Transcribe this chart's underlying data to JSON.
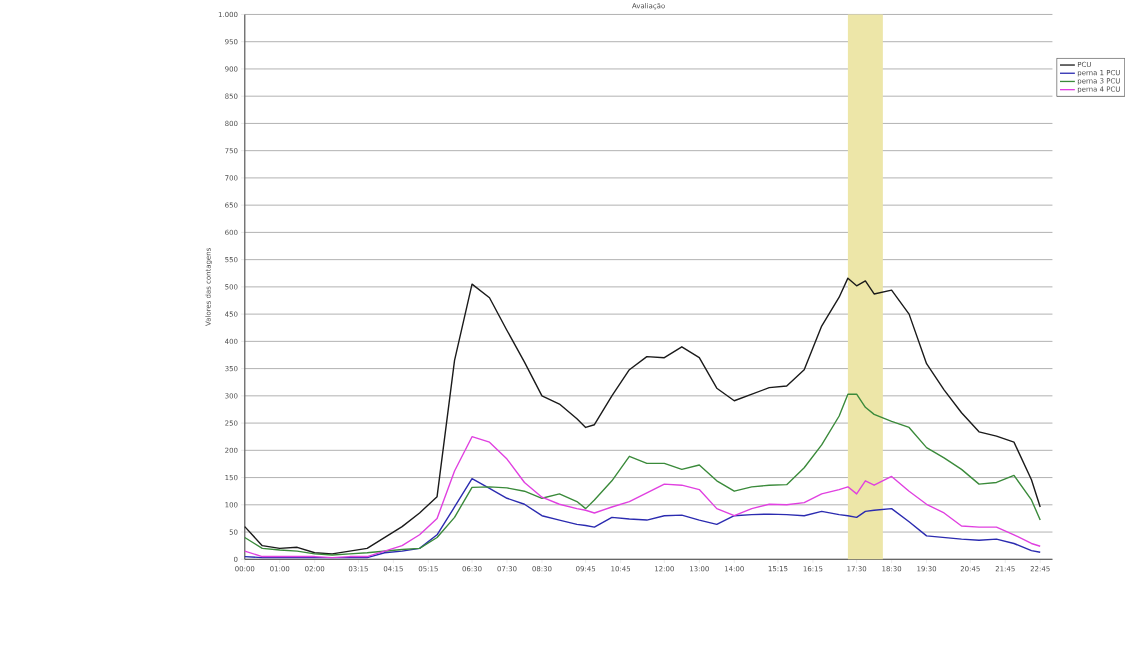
{
  "chart_data": {
    "type": "line",
    "title": "Avaliação",
    "ylabel": "Valores das contagens",
    "x": [
      0,
      0.5,
      1,
      1.5,
      2,
      2.5,
      3,
      3.5,
      4,
      4.5,
      5,
      5.5,
      6,
      6.5,
      7,
      7.5,
      8,
      8.5,
      9,
      9.5,
      9.75,
      10,
      10.5,
      11,
      11.5,
      12,
      12.5,
      13,
      13.5,
      14,
      14.5,
      15,
      15.5,
      16,
      16.5,
      17,
      17.25,
      17.5,
      17.75,
      18,
      18.5,
      19,
      19.5,
      20,
      20.5,
      21,
      21.5,
      22,
      22.5,
      22.75
    ],
    "series": [
      {
        "name": "PCU",
        "color": "#1a1a1a",
        "values": [
          60,
          25,
          20,
          22,
          12,
          10,
          15,
          20,
          40,
          60,
          85,
          115,
          365,
          505,
          480,
          420,
          362,
          300,
          285,
          258,
          242,
          247,
          300,
          348,
          372,
          370,
          390,
          370,
          314,
          291,
          303,
          315,
          318,
          348,
          428,
          481,
          516,
          502,
          511,
          487,
          494,
          450,
          359,
          311,
          269,
          234,
          226,
          215,
          146,
          96
        ]
      },
      {
        "name": "perna 1 PCU",
        "color": "#2b2bb0",
        "values": [
          5,
          3,
          3,
          3,
          3,
          3,
          3,
          3,
          12,
          15,
          20,
          45,
          96,
          148,
          130,
          112,
          101,
          80,
          72,
          64,
          62,
          59,
          77,
          74,
          72,
          80,
          81,
          72,
          64,
          80,
          82,
          83,
          82,
          80,
          88,
          82,
          80,
          77,
          88,
          90,
          93,
          69,
          43,
          40,
          37,
          35,
          37,
          29,
          16,
          13
        ]
      },
      {
        "name": "perna 3 PCU",
        "color": "#3a8a3a",
        "values": [
          40,
          20,
          17,
          15,
          10,
          8,
          10,
          12,
          15,
          18,
          20,
          40,
          77,
          132,
          133,
          131,
          125,
          112,
          120,
          106,
          93,
          109,
          144,
          189,
          176,
          176,
          165,
          173,
          144,
          125,
          133,
          136,
          137,
          168,
          210,
          263,
          303,
          303,
          279,
          266,
          253,
          242,
          205,
          186,
          165,
          138,
          141,
          154,
          109,
          72
        ]
      },
      {
        "name": "perna 4 PCU",
        "color": "#e040e0",
        "values": [
          15,
          5,
          5,
          5,
          5,
          3,
          5,
          5,
          15,
          25,
          45,
          75,
          162,
          225,
          215,
          184,
          141,
          114,
          101,
          93,
          90,
          85,
          96,
          106,
          122,
          138,
          136,
          128,
          93,
          80,
          93,
          101,
          100,
          104,
          120,
          128,
          133,
          120,
          144,
          136,
          152,
          125,
          101,
          85,
          61,
          59,
          59,
          45,
          29,
          24
        ]
      }
    ],
    "xlim": [
      0,
      23.1
    ],
    "xticks": [
      {
        "value": 0,
        "label": "00:00"
      },
      {
        "value": 1,
        "label": "01:00"
      },
      {
        "value": 2,
        "label": "02:00"
      },
      {
        "value": 3.25,
        "label": "03:15"
      },
      {
        "value": 4.25,
        "label": "04:15"
      },
      {
        "value": 5.25,
        "label": "05:15"
      },
      {
        "value": 6.5,
        "label": "06:30"
      },
      {
        "value": 7.5,
        "label": "07:30"
      },
      {
        "value": 8.5,
        "label": "08:30"
      },
      {
        "value": 9.75,
        "label": "09:45"
      },
      {
        "value": 10.75,
        "label": "10:45"
      },
      {
        "value": 12,
        "label": "12:00"
      },
      {
        "value": 13,
        "label": "13:00"
      },
      {
        "value": 14,
        "label": "14:00"
      },
      {
        "value": 15.25,
        "label": "15:15"
      },
      {
        "value": 16.25,
        "label": "16:15"
      },
      {
        "value": 17.5,
        "label": "17:30"
      },
      {
        "value": 18.5,
        "label": "18:30"
      },
      {
        "value": 19.5,
        "label": "19:30"
      },
      {
        "value": 20.75,
        "label": "20:45"
      },
      {
        "value": 21.75,
        "label": "21:45"
      },
      {
        "value": 22.75,
        "label": "22:45"
      }
    ],
    "ylim": [
      0,
      1000
    ],
    "yticks": [
      0,
      50,
      100,
      150,
      200,
      250,
      300,
      350,
      400,
      450,
      500,
      550,
      600,
      650,
      700,
      750,
      800,
      850,
      900,
      950,
      {
        "value": 1000,
        "label": "1.000"
      }
    ],
    "bands": [
      {
        "axis": "x",
        "from": 17.25,
        "to": 18.25,
        "color": "#ede6a8"
      }
    ],
    "grid": "y",
    "legend": "top right",
    "marker": "none",
    "line_style": "solid"
  }
}
